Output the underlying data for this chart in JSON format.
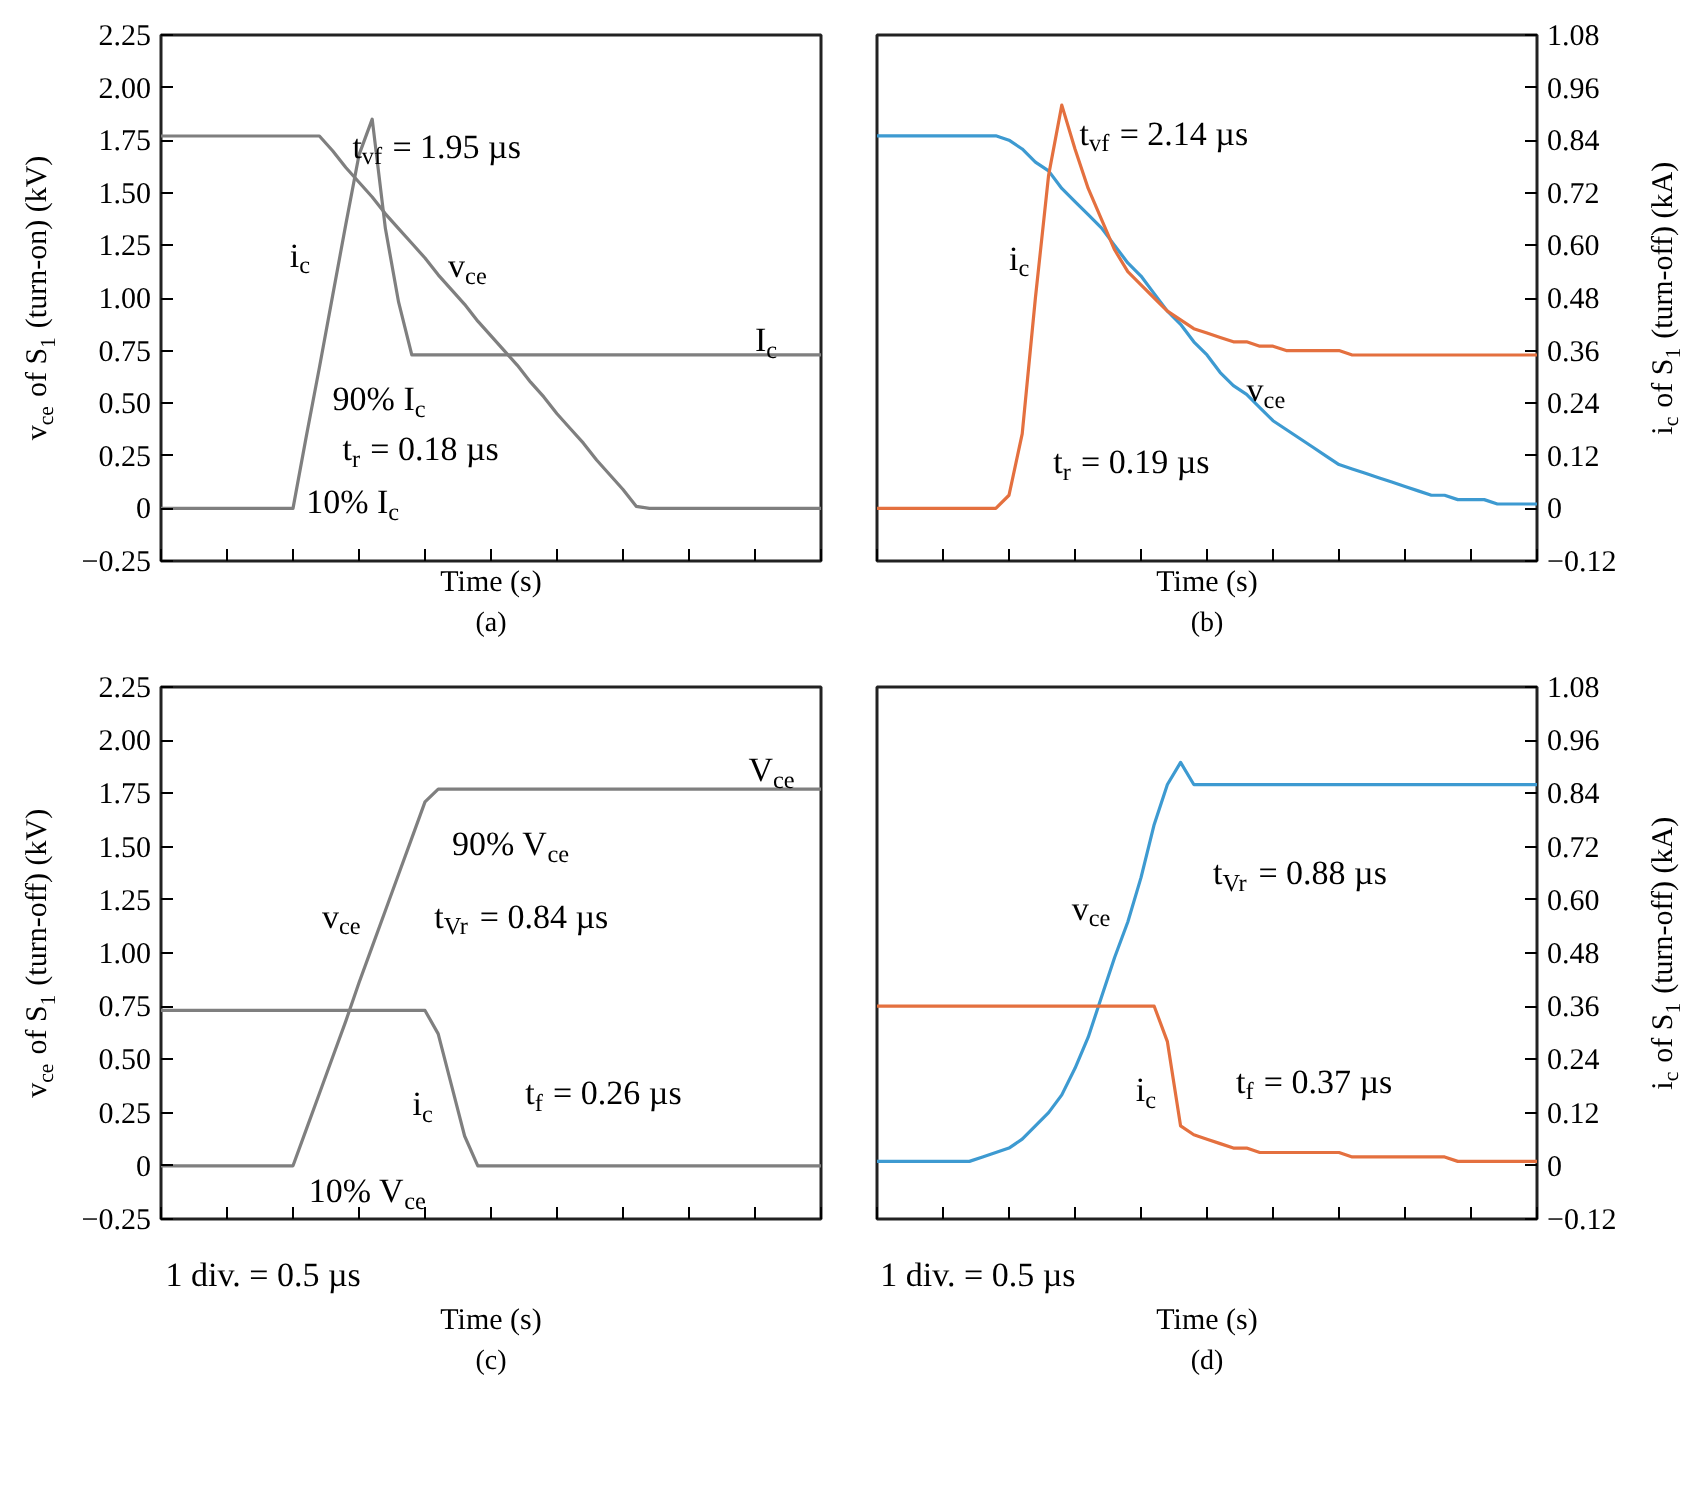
{
  "chart_data": [
    {
      "type": "line",
      "xlabel": "Time (s)",
      "subtitle": "(a)",
      "ylabel": "v$_{ce}$ of S$_{1}$ (turn-on) (kV)",
      "categories": [
        null,
        null,
        null,
        null,
        null,
        null,
        null,
        null,
        null,
        null,
        null,
        null,
        null,
        null,
        null,
        null,
        null,
        null,
        null,
        null,
        null,
        null,
        null,
        null,
        null,
        null,
        null,
        null,
        null,
        null,
        null,
        null,
        null,
        null,
        null,
        null,
        null,
        null,
        null,
        null,
        null,
        null,
        null,
        null,
        null,
        null,
        null,
        null,
        null,
        null,
        null
      ],
      "ylim": [
        -0.25,
        2.25
      ],
      "yticks": [
        2.25,
        {
          "value": 2,
          "label": "2.00"
        },
        1.75,
        {
          "value": 1.5,
          "label": "1.50"
        },
        1.25,
        {
          "value": 1,
          "label": "1.00"
        },
        0.75,
        {
          "value": 0.5,
          "label": "0.50"
        },
        0.25,
        0,
        {
          "value": -0.25,
          "label": "−0.25"
        }
      ],
      "tick_labels": "y",
      "series": [
        {
          "name": "v$_{ce}$",
          "color": "#7f7f7f",
          "values": [
            1.77,
            1.77,
            1.77,
            1.77,
            1.77,
            1.77,
            1.77,
            1.77,
            1.77,
            1.77,
            1.77,
            1.77,
            1.77,
            1.7,
            1.62,
            1.55,
            1.48,
            1.4,
            1.33,
            1.26,
            1.19,
            1.11,
            1.04,
            0.97,
            0.89,
            0.82,
            0.75,
            0.68,
            0.6,
            0.53,
            0.45,
            0.38,
            0.31,
            0.23,
            0.16,
            0.09,
            0.01,
            0,
            0,
            0,
            0,
            0,
            0,
            0,
            0,
            0,
            0,
            0,
            0,
            0,
            0
          ]
        },
        {
          "name": "i$_{c}$",
          "color": "#7f7f7f",
          "values": [
            0,
            0,
            0,
            0,
            0,
            0,
            0,
            0,
            0,
            0,
            0,
            0.34,
            0.67,
            1.01,
            1.35,
            1.68,
            1.85,
            1.33,
            0.98,
            0.73,
            0.73,
            0.73,
            0.73,
            0.73,
            0.73,
            0.73,
            0.73,
            0.73,
            0.73,
            0.73,
            0.73,
            0.73,
            0.73,
            0.73,
            0.73,
            0.73,
            0.73,
            0.73,
            0.73,
            0.73,
            0.73,
            0.73,
            0.73,
            0.73,
            0.73,
            0.73,
            0.73,
            0.73,
            0.73,
            0.73,
            0.73
          ]
        }
      ],
      "annotations": [
        "t$_{vf}$ = 1.95 µs",
        "I$_{c}$",
        "90% I$_{c}$",
        "t$_{r}$ = 0.18 µs",
        "10% I$_{c}$"
      ]
    },
    {
      "type": "line",
      "xlabel": "Time (s)",
      "subtitle": "(b)",
      "ylabel": "i$_{c}$ of S$_{1}$ (turn-off) (kA)",
      "categories": [
        null,
        null,
        null,
        null,
        null,
        null,
        null,
        null,
        null,
        null,
        null,
        null,
        null,
        null,
        null,
        null,
        null,
        null,
        null,
        null,
        null,
        null,
        null,
        null,
        null,
        null,
        null,
        null,
        null,
        null,
        null,
        null,
        null,
        null,
        null,
        null,
        null,
        null,
        null,
        null,
        null,
        null,
        null,
        null,
        null,
        null,
        null,
        null,
        null,
        null,
        null
      ],
      "ylim": [
        -0.12,
        1.08
      ],
      "yticks": [
        1.08,
        0.96,
        0.84,
        0.72,
        {
          "value": 0.6,
          "label": "0.60"
        },
        0.48,
        0.36,
        0.24,
        0.12,
        0,
        {
          "value": -0.12,
          "label": "−0.12"
        }
      ],
      "tick_labels": "y",
      "series": [
        {
          "name": "v$_{ce}$",
          "color": "#3d9ad1",
          "values": [
            0.85,
            0.85,
            0.85,
            0.85,
            0.85,
            0.85,
            0.85,
            0.85,
            0.85,
            0.85,
            0.84,
            0.82,
            0.79,
            0.77,
            0.73,
            0.7,
            0.67,
            0.64,
            0.6,
            0.56,
            0.53,
            0.49,
            0.45,
            0.42,
            0.38,
            0.35,
            0.31,
            0.28,
            0.26,
            0.23,
            0.2,
            0.18,
            0.16,
            0.14,
            0.12,
            0.1,
            0.09,
            0.08,
            0.07,
            0.06,
            0.05,
            0.04,
            0.03,
            0.03,
            0.02,
            0.02,
            0.02,
            0.01,
            0.01,
            0.01,
            0.01
          ]
        },
        {
          "name": "i$_{c}$",
          "color": "#e4703f",
          "values": [
            0,
            0,
            0,
            0,
            0,
            0,
            0,
            0,
            0,
            0,
            0.03,
            0.17,
            0.48,
            0.76,
            0.92,
            0.82,
            0.73,
            0.66,
            0.59,
            0.54,
            0.51,
            0.48,
            0.45,
            0.43,
            0.41,
            0.4,
            0.39,
            0.38,
            0.38,
            0.37,
            0.37,
            0.36,
            0.36,
            0.36,
            0.36,
            0.36,
            0.35,
            0.35,
            0.35,
            0.35,
            0.35,
            0.35,
            0.35,
            0.35,
            0.35,
            0.35,
            0.35,
            0.35,
            0.35,
            0.35,
            0.35
          ]
        }
      ],
      "annotations": [
        "t$_{vf}$ = 2.14 µs",
        "t$_{r}$ = 0.19 µs"
      ]
    },
    {
      "type": "line",
      "xlabel": "Time (s)",
      "subtitle": "(c)",
      "ylabel": "v$_{ce}$ of S$_{1}$ (turn-off) (kV)",
      "categories": [
        null,
        null,
        null,
        null,
        null,
        null,
        null,
        null,
        null,
        null,
        null,
        null,
        null,
        null,
        null,
        null,
        null,
        null,
        null,
        null,
        null,
        null,
        null,
        null,
        null,
        null,
        null,
        null,
        null,
        null,
        null,
        null,
        null,
        null,
        null,
        null,
        null,
        null,
        null,
        null,
        null,
        null,
        null,
        null,
        null,
        null,
        null,
        null,
        null,
        null,
        null
      ],
      "ylim": [
        -0.25,
        2.25
      ],
      "yticks": [
        2.25,
        {
          "value": 2,
          "label": "2.00"
        },
        1.75,
        {
          "value": 1.5,
          "label": "1.50"
        },
        1.25,
        {
          "value": 1,
          "label": "1.00"
        },
        0.75,
        {
          "value": 0.5,
          "label": "0.50"
        },
        0.25,
        0,
        {
          "value": -0.25,
          "label": "−0.25"
        }
      ],
      "tick_labels": "y",
      "series": [
        {
          "name": "v$_{ce}$",
          "color": "#7f7f7f",
          "values": [
            0,
            0,
            0,
            0,
            0,
            0,
            0,
            0,
            0,
            0,
            0,
            0.17,
            0.34,
            0.51,
            0.68,
            0.86,
            1.03,
            1.2,
            1.37,
            1.54,
            1.71,
            1.77,
            1.77,
            1.77,
            1.77,
            1.77,
            1.77,
            1.77,
            1.77,
            1.77,
            1.77,
            1.77,
            1.77,
            1.77,
            1.77,
            1.77,
            1.77,
            1.77,
            1.77,
            1.77,
            1.77,
            1.77,
            1.77,
            1.77,
            1.77,
            1.77,
            1.77,
            1.77,
            1.77,
            1.77,
            1.77
          ]
        },
        {
          "name": "i$_{c}$",
          "color": "#7f7f7f",
          "values": [
            0.73,
            0.73,
            0.73,
            0.73,
            0.73,
            0.73,
            0.73,
            0.73,
            0.73,
            0.73,
            0.73,
            0.73,
            0.73,
            0.73,
            0.73,
            0.73,
            0.73,
            0.73,
            0.73,
            0.73,
            0.73,
            0.62,
            0.38,
            0.14,
            0,
            0,
            0,
            0,
            0,
            0,
            0,
            0,
            0,
            0,
            0,
            0,
            0,
            0,
            0,
            0,
            0,
            0,
            0,
            0,
            0,
            0,
            0,
            0,
            0,
            0,
            0
          ]
        }
      ],
      "annotations": [
        "V$_{ce}$",
        "90% V$_{ce}$",
        "t$_{Vr}$ = 0.84 µs",
        "t$_{f}$ = 0.26 µs",
        "10% V$_{ce}$",
        "1 div. = 0.5 µs"
      ]
    },
    {
      "type": "line",
      "xlabel": "Time (s)",
      "subtitle": "(d)",
      "ylabel": "i$_{c}$ of S$_{1}$ (turn-off) (kA)",
      "categories": [
        null,
        null,
        null,
        null,
        null,
        null,
        null,
        null,
        null,
        null,
        null,
        null,
        null,
        null,
        null,
        null,
        null,
        null,
        null,
        null,
        null,
        null,
        null,
        null,
        null,
        null,
        null,
        null,
        null,
        null,
        null,
        null,
        null,
        null,
        null,
        null,
        null,
        null,
        null,
        null,
        null,
        null,
        null,
        null,
        null,
        null,
        null,
        null,
        null,
        null,
        null
      ],
      "ylim": [
        -0.12,
        1.08
      ],
      "yticks": [
        1.08,
        0.96,
        0.84,
        0.72,
        {
          "value": 0.6,
          "label": "0.60"
        },
        0.48,
        0.36,
        0.24,
        0.12,
        0,
        {
          "value": -0.12,
          "label": "−0.12"
        }
      ],
      "tick_labels": "y",
      "series": [
        {
          "name": "v$_{ce}$",
          "color": "#3d9ad1",
          "values": [
            0.01,
            0.01,
            0.01,
            0.01,
            0.01,
            0.01,
            0.01,
            0.01,
            0.02,
            0.03,
            0.04,
            0.06,
            0.09,
            0.12,
            0.16,
            0.22,
            0.29,
            0.38,
            0.47,
            0.55,
            0.65,
            0.77,
            0.86,
            0.91,
            0.86,
            0.86,
            0.86,
            0.86,
            0.86,
            0.86,
            0.86,
            0.86,
            0.86,
            0.86,
            0.86,
            0.86,
            0.86,
            0.86,
            0.86,
            0.86,
            0.86,
            0.86,
            0.86,
            0.86,
            0.86,
            0.86,
            0.86,
            0.86,
            0.86,
            0.86,
            0.86
          ]
        },
        {
          "name": "i$_{c}$",
          "color": "#e4703f",
          "values": [
            0.36,
            0.36,
            0.36,
            0.36,
            0.36,
            0.36,
            0.36,
            0.36,
            0.36,
            0.36,
            0.36,
            0.36,
            0.36,
            0.36,
            0.36,
            0.36,
            0.36,
            0.36,
            0.36,
            0.36,
            0.36,
            0.36,
            0.28,
            0.09,
            0.07,
            0.06,
            0.05,
            0.04,
            0.04,
            0.03,
            0.03,
            0.03,
            0.03,
            0.03,
            0.03,
            0.03,
            0.02,
            0.02,
            0.02,
            0.02,
            0.02,
            0.02,
            0.02,
            0.02,
            0.01,
            0.01,
            0.01,
            0.01,
            0.01,
            0.01,
            0.01
          ]
        }
      ],
      "annotations": [
        "t$_{Vr}$ = 0.88 µs",
        "t$_{f}$ = 0.37 µs",
        "1 div. = 0.5 µs"
      ]
    }
  ]
}
